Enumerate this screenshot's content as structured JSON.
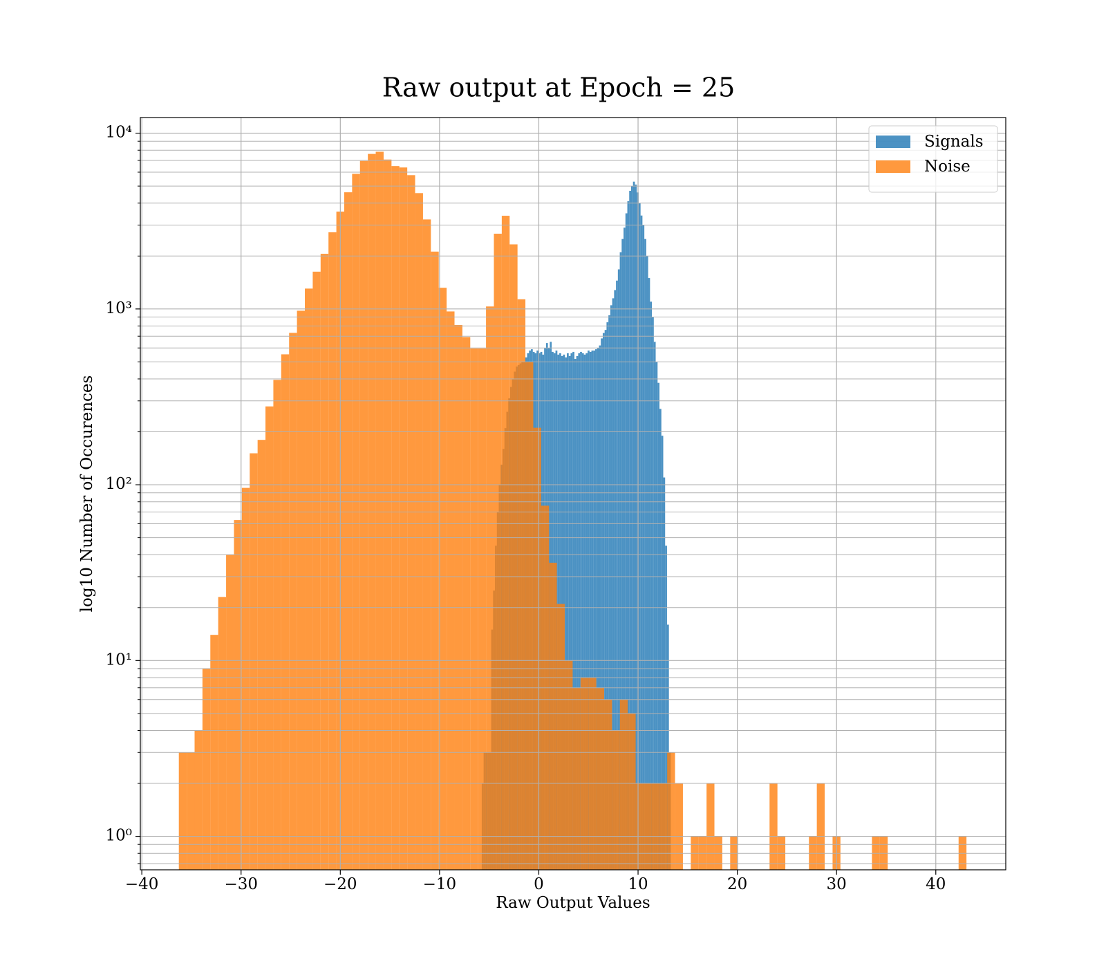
{
  "chart_data": {
    "type": "histogram",
    "title": "Raw output at Epoch = 25",
    "xlabel": "Raw Output Values",
    "ylabel": "log10 Number of Occurences",
    "xlim": [
      -40.15,
      47.05
    ],
    "ylim": [
      0.645,
      12270
    ],
    "log_y": true,
    "grid": true,
    "minor_grid": true,
    "legend": "upper right",
    "opacity": 0.8,
    "xticks": [
      {
        "value": -40,
        "label": "−40"
      },
      {
        "value": -30,
        "label": "−30"
      },
      {
        "value": -20,
        "label": "−20"
      },
      {
        "value": -10,
        "label": "−10"
      },
      0,
      10,
      20,
      30,
      40
    ],
    "yticks": [
      {
        "value": 1,
        "label": "10⁰"
      },
      {
        "value": 10,
        "label": "10¹"
      },
      {
        "value": 100,
        "label": "10²"
      },
      {
        "value": 1000,
        "label": "10³"
      },
      {
        "value": 10000,
        "label": "10⁴"
      }
    ],
    "series": [
      {
        "name": "Signals",
        "color": "#1f77b4",
        "bins": [
          -5.75,
          -5.5595,
          -5.369,
          -5.1785,
          -4.988,
          -4.7975,
          -4.607,
          -4.4165,
          -4.226,
          -4.0355,
          -3.845,
          -3.6545,
          -3.464,
          -3.2735,
          -3.083,
          -2.8925,
          -2.702,
          -2.5115,
          -2.321,
          -2.1305,
          -1.94,
          -1.7495,
          -1.559,
          -1.3685,
          -1.178,
          -0.9875,
          -0.797,
          -0.6065,
          -0.416,
          -0.2255,
          -0.035,
          0.1555,
          0.346,
          0.5365,
          0.727,
          0.9175,
          1.108,
          1.2985,
          1.489,
          1.6795,
          1.87,
          2.0605,
          2.251,
          2.4415,
          2.632,
          2.8225,
          3.013,
          3.2035,
          3.394,
          3.5845,
          3.775,
          3.9655,
          4.156,
          4.3465,
          4.537,
          4.7275,
          4.918,
          5.1085,
          5.299,
          5.4895,
          5.68,
          5.8705,
          6.061,
          6.2515,
          6.442,
          6.6325,
          6.823,
          7.0135,
          7.204,
          7.3945,
          7.585,
          7.7755,
          7.966,
          8.1565,
          8.347,
          8.5375,
          8.728,
          8.9185,
          9.109,
          9.2995,
          9.49,
          9.6805,
          9.871,
          10.0615,
          10.252,
          10.4425,
          10.633,
          10.8235,
          11.014,
          11.2045,
          11.395,
          11.5855,
          11.776,
          11.9665,
          12.157,
          12.3475,
          12.538,
          12.7285,
          12.919,
          13.1095,
          13.3
        ],
        "values": [
          2,
          3,
          3,
          3,
          3,
          15,
          25,
          45,
          70,
          100,
          130,
          160,
          210,
          260,
          310,
          360,
          400,
          440,
          470,
          480,
          490,
          500,
          500,
          530,
          560,
          580,
          590,
          570,
          560,
          580,
          560,
          570,
          550,
          600,
          640,
          600,
          650,
          570,
          560,
          580,
          550,
          560,
          540,
          550,
          530,
          560,
          540,
          560,
          570,
          520,
          540,
          560,
          570,
          560,
          550,
          560,
          580,
          570,
          580,
          580,
          590,
          600,
          620,
          680,
          730,
          760,
          840,
          920,
          1050,
          1150,
          1280,
          1450,
          1680,
          2100,
          2500,
          2900,
          3500,
          4100,
          4700,
          5000,
          5300,
          5100,
          4600,
          4000,
          3400,
          3000,
          2500,
          2000,
          1500,
          1100,
          900,
          650,
          500,
          380,
          270,
          190,
          110,
          45,
          16,
          3
        ]
      },
      {
        "name": "Noise",
        "color": "#ff7f0e",
        "bins": [
          -36.27,
          -35.4764,
          -34.6828,
          -33.8892,
          -33.0956,
          -32.302,
          -31.5084,
          -30.7148,
          -29.9212,
          -29.1276,
          -28.334,
          -27.5404,
          -26.7468,
          -25.9532,
          -25.1596,
          -24.366,
          -23.5724,
          -22.7788,
          -21.9852,
          -21.1916,
          -20.398,
          -19.6044,
          -18.8108,
          -18.0172,
          -17.2236,
          -16.43,
          -15.6364,
          -14.8428,
          -14.0492,
          -13.2556,
          -12.462,
          -11.6684,
          -10.8748,
          -10.0812,
          -9.2876,
          -8.494,
          -7.7004,
          -6.9068,
          -6.1132,
          -5.3196,
          -4.526,
          -3.7324,
          -2.9388,
          -2.1452,
          -1.3516,
          -0.558,
          0.2356,
          1.0292,
          1.8228,
          2.6164,
          3.41,
          4.2036,
          4.9972,
          5.7908,
          6.5844,
          7.378,
          8.1716,
          8.9652,
          9.7588,
          10.5524,
          11.346,
          12.1396,
          12.9332,
          13.7268,
          14.5204,
          15.314,
          16.1076,
          16.9012,
          17.6948,
          18.4884,
          19.282,
          20.0756,
          20.8692,
          21.6628,
          22.4564,
          23.25,
          24.0436,
          24.8372,
          25.6308,
          26.4244,
          27.218,
          28.0116,
          28.8052,
          29.5988,
          30.3924,
          31.186,
          31.9796,
          32.7732,
          33.5668,
          34.3604,
          35.154,
          35.9476,
          36.7412,
          37.5348,
          38.3284,
          39.122,
          39.9156,
          40.7092,
          41.5028,
          42.2964,
          43.09
        ],
        "values": [
          3,
          3,
          4,
          9,
          14,
          23,
          40,
          63,
          96,
          151,
          180,
          279,
          395,
          552,
          731,
          977,
          1306,
          1630,
          2060,
          2730,
          3580,
          4610,
          5870,
          6950,
          7620,
          7840,
          7080,
          6500,
          6380,
          5770,
          4560,
          3230,
          2120,
          1320,
          968,
          811,
          692,
          596,
          596,
          1033,
          2680,
          3390,
          2330,
          1135,
          500,
          211,
          76,
          36,
          21,
          10,
          7,
          8,
          8,
          7,
          6,
          4,
          6,
          5,
          2,
          2,
          2,
          2,
          3,
          2,
          0,
          1,
          1,
          2,
          1,
          0,
          1,
          0,
          0,
          0,
          0,
          2,
          1,
          0,
          0,
          0,
          1,
          2,
          0,
          1,
          0,
          0,
          0,
          0,
          1,
          1,
          0,
          0,
          0,
          0,
          0,
          0,
          0,
          0,
          0,
          1
        ]
      }
    ]
  }
}
